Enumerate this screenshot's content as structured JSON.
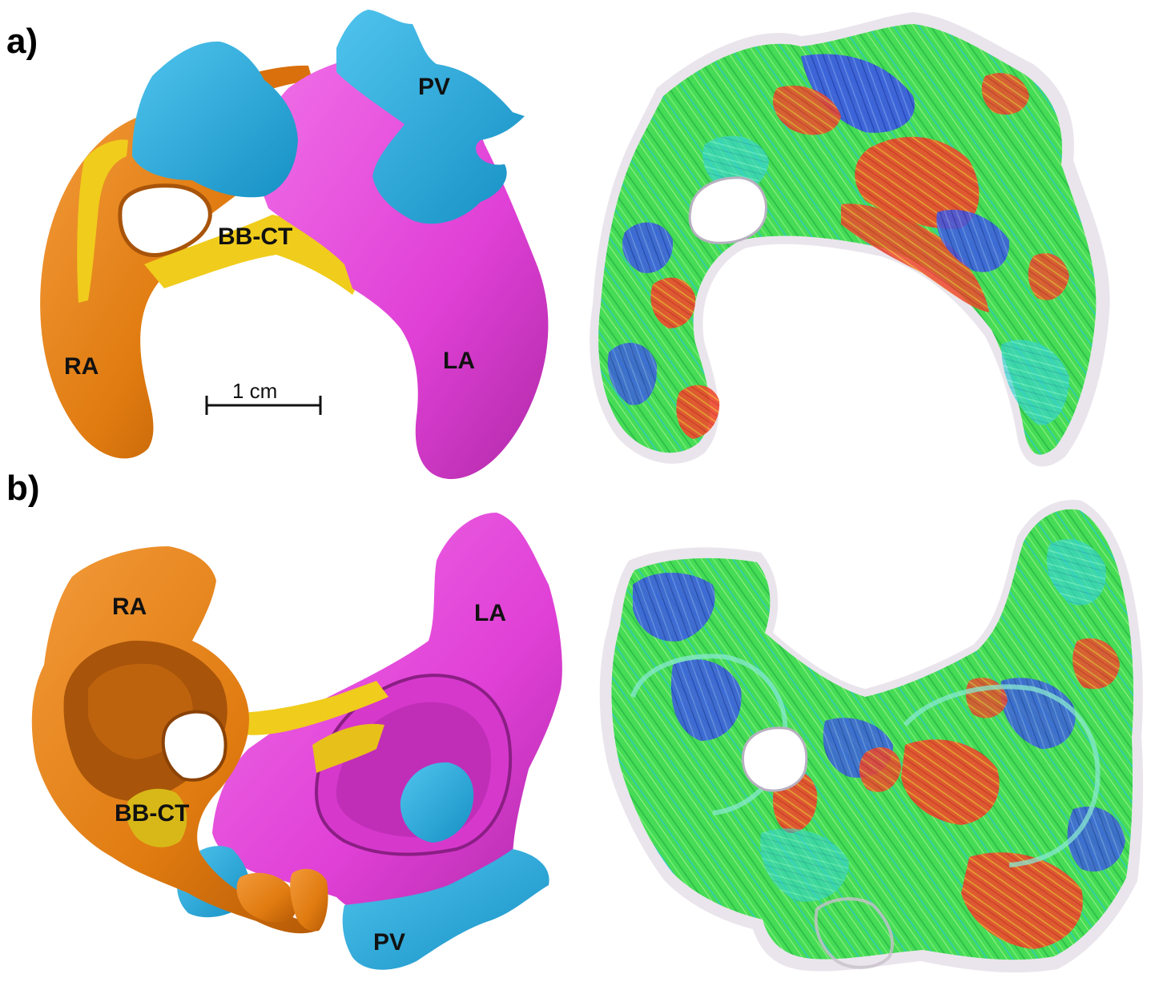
{
  "panels": [
    {
      "letter": "a)"
    },
    {
      "letter": "b)"
    }
  ],
  "labels": {
    "a": {
      "pv": "PV",
      "bbct": "BB-CT",
      "ra": "RA",
      "la": "LA"
    },
    "b": {
      "ra": "RA",
      "la": "LA",
      "bbct": "BB-CT",
      "pv": "PV"
    }
  },
  "scale_bar": {
    "label": "1 cm"
  },
  "colors": {
    "ra": "#e07b10",
    "ra_dark": "#a8540a",
    "la": "#e040d6",
    "la_dark": "#a02898",
    "pv": "#1aa6d8",
    "bbct": "#f0cc1c",
    "fiber_green": "#3ee05a",
    "fiber_blue": "#3a4ee0",
    "fiber_red": "#f04030",
    "fiber_cyan": "#30d8d0",
    "fiber_yellow": "#e8e030"
  }
}
